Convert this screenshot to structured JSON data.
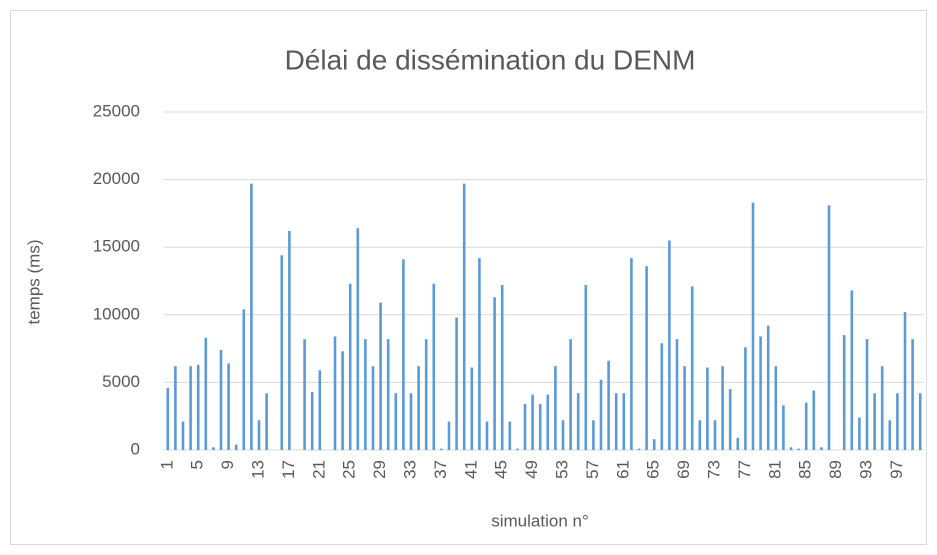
{
  "chart_data": {
    "type": "bar",
    "title": "Délai de dissémination du DENM",
    "xlabel": "simulation n°",
    "ylabel": "temps (ms)",
    "categories": [
      "1",
      null,
      null,
      null,
      "5",
      null,
      null,
      null,
      "9",
      null,
      null,
      null,
      "13",
      null,
      null,
      null,
      "17",
      null,
      null,
      null,
      "21",
      null,
      null,
      null,
      "25",
      null,
      null,
      null,
      "29",
      null,
      null,
      null,
      "33",
      null,
      null,
      null,
      "37",
      null,
      null,
      null,
      "41",
      null,
      null,
      null,
      "45",
      null,
      null,
      null,
      "49",
      null,
      null,
      null,
      "53",
      null,
      null,
      null,
      "57",
      null,
      null,
      null,
      "61",
      null,
      null,
      null,
      "65",
      null,
      null,
      null,
      "69",
      null,
      null,
      null,
      "73",
      null,
      null,
      null,
      "77",
      null,
      null,
      null,
      "81",
      null,
      null,
      null,
      "85",
      null,
      null,
      null,
      "89",
      null,
      null,
      null,
      "93",
      null,
      null,
      null,
      "97",
      null,
      null,
      null
    ],
    "values": [
      4600,
      6200,
      2100,
      6200,
      6300,
      8300,
      200,
      7400,
      6400,
      400,
      10400,
      19700,
      2200,
      4200,
      0,
      14400,
      16200,
      0,
      8200,
      4300,
      5900,
      0,
      8400,
      7300,
      12300,
      16400,
      8200,
      6200,
      10900,
      8200,
      4200,
      14100,
      4200,
      6200,
      8200,
      12300,
      100,
      2100,
      9800,
      19700,
      6100,
      14200,
      2100,
      11300,
      12200,
      2100,
      100,
      3400,
      4100,
      3400,
      4100,
      6200,
      2200,
      8200,
      4200,
      12200,
      2200,
      5200,
      6600,
      4200,
      4200,
      14200,
      100,
      13600,
      800,
      7900,
      15500,
      8200,
      6200,
      12100,
      2200,
      6100,
      2200,
      6200,
      4500,
      900,
      7600,
      18300,
      8400,
      9200,
      6200,
      3300,
      200,
      100,
      3500,
      4400,
      200,
      18100,
      0,
      8500,
      11800,
      2400,
      8200,
      4200,
      6200,
      2200,
      4200,
      10200,
      8200,
      4200
    ],
    "color": "#5b9bd5",
    "ylim": [
      0,
      25000
    ],
    "yticks": [
      0,
      5000,
      10000,
      15000,
      20000,
      25000
    ],
    "grid": true
  }
}
